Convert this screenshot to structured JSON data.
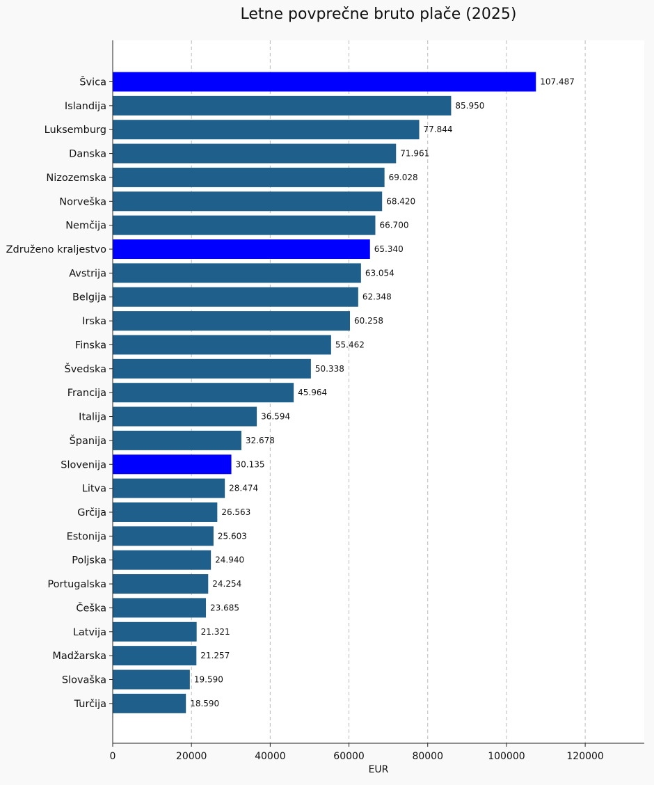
{
  "chart_data": {
    "type": "bar",
    "orientation": "horizontal",
    "title": "Letne povprečne bruto plače (2025)",
    "xlabel": "EUR",
    "ylabel": "",
    "xlim": [
      0,
      135000
    ],
    "xticks": [
      0,
      20000,
      40000,
      60000,
      80000,
      100000,
      120000
    ],
    "grid": "x-dashed",
    "colors": {
      "default": "#1f5f8b",
      "highlight": "#0000ff"
    },
    "categories": [
      "Švica",
      "Islandija",
      "Luksemburg",
      "Danska",
      "Nizozemska",
      "Norveška",
      "Nemčija",
      "Združeno kraljestvo",
      "Avstrija",
      "Belgija",
      "Irska",
      "Finska",
      "Švedska",
      "Francija",
      "Italija",
      "Španija",
      "Slovenija",
      "Litva",
      "Grčija",
      "Estonija",
      "Poljska",
      "Portugalska",
      "Češka",
      "Latvija",
      "Madžarska",
      "Slovaška",
      "Turčija"
    ],
    "values": [
      107487,
      85950,
      77844,
      71961,
      69028,
      68420,
      66700,
      65340,
      63054,
      62348,
      60258,
      55462,
      50338,
      45964,
      36594,
      32678,
      30135,
      28474,
      26563,
      25603,
      24940,
      24254,
      23685,
      21321,
      21257,
      19590,
      18590
    ],
    "value_labels": [
      "107.487",
      "85.950",
      "77.844",
      "71.961",
      "69.028",
      "68.420",
      "66.700",
      "65.340",
      "63.054",
      "62.348",
      "60.258",
      "55.462",
      "50.338",
      "45.964",
      "36.594",
      "32.678",
      "30.135",
      "28.474",
      "26.563",
      "25.603",
      "24.940",
      "24.254",
      "23.685",
      "21.321",
      "21.257",
      "19.590",
      "18.590"
    ],
    "highlighted": [
      "Švica",
      "Združeno kraljestvo",
      "Slovenija"
    ]
  }
}
